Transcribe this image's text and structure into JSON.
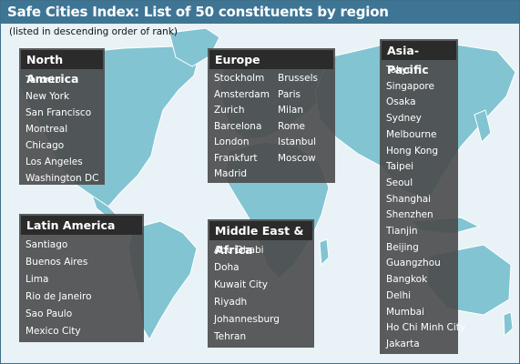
{
  "title": "Safe Cities Index: List of 50 constituents by region",
  "subtitle": "(listed in descending order of rank)",
  "colors": {
    "title_bar": "#3e7595",
    "ocean": "#e8f2f7",
    "land": "#82c4d2",
    "box": "#4a4a4a",
    "box_header": "#2b2b2b"
  },
  "regions": {
    "north_america": {
      "name": "North America",
      "cities": [
        "Toronto",
        "New York",
        "San Francisco",
        "Montreal",
        "Chicago",
        "Los Angeles",
        "Washington DC"
      ]
    },
    "latin_america": {
      "name": "Latin America",
      "cities": [
        "Santiago",
        "Buenos Aires",
        "Lima",
        "Rio de Janeiro",
        "Sao Paulo",
        "Mexico City"
      ]
    },
    "europe": {
      "name": "Europe",
      "cities_col1": [
        "Stockholm",
        "Amsterdam",
        "Zurich",
        "Barcelona",
        "London",
        "Frankfurt",
        "Madrid"
      ],
      "cities_col2": [
        "Brussels",
        "Paris",
        "Milan",
        "Rome",
        "Istanbul",
        "Moscow"
      ]
    },
    "middle_east_africa": {
      "name": "Middle East & Africa",
      "cities": [
        "Abu Dhabi",
        "Doha",
        "Kuwait City",
        "Riyadh",
        "Johannesburg",
        "Tehran"
      ]
    },
    "asia_pacific": {
      "name": "Asia-Pacific",
      "cities": [
        "Tokyo",
        "Singapore",
        "Osaka",
        "Sydney",
        "Melbourne",
        "Hong Kong",
        "Taipei",
        "Seoul",
        "Shanghai",
        "Shenzhen",
        "Tianjin",
        "Beijing",
        "Guangzhou",
        "Bangkok",
        "Delhi",
        "Mumbai",
        "Ho Chi Minh City",
        "Jakarta"
      ]
    }
  }
}
